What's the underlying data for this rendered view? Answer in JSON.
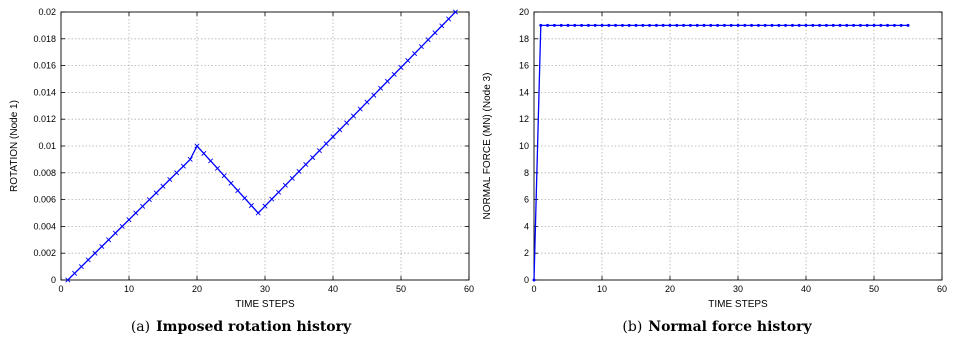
{
  "chart_data": [
    {
      "type": "line",
      "caption_label": "(a)",
      "caption_title": "Imposed rotation history",
      "xlabel": "TIME STEPS",
      "ylabel": "ROTATION (Node 1)",
      "xlim": [
        0,
        60
      ],
      "ylim": [
        0,
        0.02
      ],
      "xticks": [
        "0",
        "10",
        "20",
        "30",
        "40",
        "50",
        "60"
      ],
      "yticks": [
        "0",
        "0.002",
        "0.004",
        "0.006",
        "0.008",
        "0.01",
        "0.012",
        "0.014",
        "0.016",
        "0.018",
        "0.02"
      ],
      "grid": true,
      "color": "#0000ff",
      "marker": "x",
      "series": [
        {
          "x": [
            1,
            2,
            3,
            4,
            5,
            6,
            7,
            8,
            9,
            10,
            11,
            12,
            13,
            14,
            15,
            16,
            17,
            18,
            19,
            20,
            21,
            22,
            23,
            24,
            25,
            26,
            27,
            28,
            29,
            30,
            31,
            32,
            33,
            34,
            35,
            36,
            37,
            38,
            39,
            40,
            41,
            42,
            43,
            44,
            45,
            46,
            47,
            48,
            49,
            50,
            51,
            52,
            53,
            54,
            55,
            56,
            57,
            58
          ],
          "y": [
            0,
            0.0005,
            0.001,
            0.0015,
            0.002,
            0.0025,
            0.003,
            0.0035,
            0.004,
            0.0045,
            0.005,
            0.0055,
            0.006,
            0.0065,
            0.007,
            0.0075,
            0.008,
            0.0085,
            0.009,
            0.01,
            0.0094444,
            0.0088889,
            0.0083333,
            0.0077778,
            0.0072222,
            0.0066667,
            0.0061111,
            0.0055556,
            0.005,
            0.0055172,
            0.0060345,
            0.0065517,
            0.007069,
            0.0075862,
            0.0081034,
            0.0086207,
            0.0091379,
            0.0096552,
            0.0101724,
            0.0106897,
            0.0112069,
            0.0117241,
            0.0122414,
            0.0127586,
            0.0132759,
            0.0137931,
            0.0143103,
            0.0148276,
            0.0153448,
            0.0158621,
            0.0163793,
            0.0168966,
            0.0174138,
            0.017931,
            0.0184483,
            0.0189655,
            0.0194828,
            0.02
          ]
        }
      ]
    },
    {
      "type": "line",
      "caption_label": "(b)",
      "caption_title": "Normal force history",
      "xlabel": "TIME STEPS",
      "ylabel": "NORMAL FORCE (MN) (Node 3)",
      "xlim": [
        0,
        60
      ],
      "ylim": [
        0,
        20
      ],
      "xticks": [
        "0",
        "10",
        "20",
        "30",
        "40",
        "50",
        "60"
      ],
      "yticks": [
        "0",
        "2",
        "4",
        "6",
        "8",
        "10",
        "12",
        "14",
        "16",
        "18",
        "20"
      ],
      "grid": true,
      "color": "#0000ff",
      "marker": ".",
      "series": [
        {
          "x": [
            0,
            1,
            2,
            3,
            4,
            5,
            6,
            7,
            8,
            9,
            10,
            11,
            12,
            13,
            14,
            15,
            16,
            17,
            18,
            19,
            20,
            21,
            22,
            23,
            24,
            25,
            26,
            27,
            28,
            29,
            30,
            31,
            32,
            33,
            34,
            35,
            36,
            37,
            38,
            39,
            40,
            41,
            42,
            43,
            44,
            45,
            46,
            47,
            48,
            49,
            50,
            51,
            52,
            53,
            54,
            55
          ],
          "y": [
            0,
            19,
            19,
            19,
            19,
            19,
            19,
            19,
            19,
            19,
            19,
            19,
            19,
            19,
            19,
            19,
            19,
            19,
            19,
            19,
            19,
            19,
            19,
            19,
            19,
            19,
            19,
            19,
            19,
            19,
            19,
            19,
            19,
            19,
            19,
            19,
            19,
            19,
            19,
            19,
            19,
            19,
            19,
            19,
            19,
            19,
            19,
            19,
            19,
            19,
            19,
            19,
            19,
            19,
            19,
            19
          ]
        }
      ]
    }
  ]
}
